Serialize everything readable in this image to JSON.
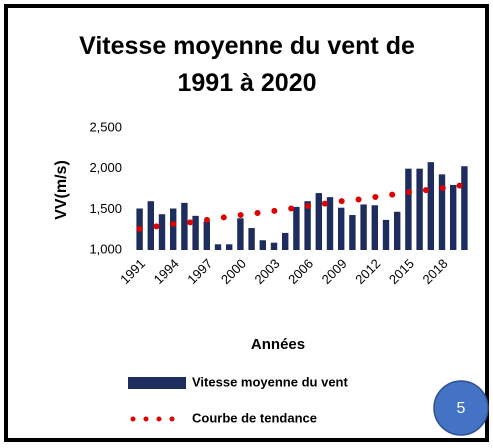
{
  "chart_data": {
    "type": "bar",
    "title": "Vitesse moyenne du vent de 1991 à 2020",
    "y_label": "VV(m/s)",
    "x_label": "Années",
    "categories": [
      "1991",
      null,
      null,
      "1994",
      null,
      null,
      "1997",
      null,
      null,
      "2000",
      null,
      null,
      "2003",
      null,
      null,
      "2006",
      null,
      null,
      "2009",
      null,
      null,
      "2012",
      null,
      null,
      "2015",
      null,
      null,
      "2018",
      null,
      null
    ],
    "series": [
      {
        "name": "Vitesse moyenne du vent",
        "color": "#1f2d5e",
        "values": [
          1.51,
          1.6,
          1.44,
          1.51,
          1.58,
          1.42,
          1.35,
          1.07,
          1.07,
          1.39,
          1.27,
          1.12,
          1.09,
          1.21,
          1.53,
          1.6,
          1.7,
          1.65,
          1.52,
          1.43,
          1.56,
          1.55,
          1.37,
          1.47,
          2.0,
          2.0,
          2.08,
          1.93,
          1.8,
          2.03
        ]
      },
      {
        "name": "Courbe de tendance",
        "color": "#e00000",
        "style": "dotted",
        "values": [
          1.26,
          1.28,
          1.3,
          1.32,
          1.33,
          1.35,
          1.37,
          1.39,
          1.41,
          1.43,
          1.45,
          1.46,
          1.48,
          1.5,
          1.52,
          1.54,
          1.56,
          1.58,
          1.6,
          1.61,
          1.63,
          1.65,
          1.67,
          1.69,
          1.71,
          1.73,
          1.74,
          1.76,
          1.78,
          1.8
        ]
      }
    ],
    "ylim": [
      1.0,
      2.5
    ],
    "yticks": [
      {
        "value": 1.0,
        "label": "1,000"
      },
      {
        "value": 1.5,
        "label": "1,500"
      },
      {
        "value": 2.0,
        "label": "2,000"
      },
      {
        "value": 2.5,
        "label": "2,500"
      }
    ],
    "grid": false,
    "legend": "bottom",
    "badge": "5"
  }
}
